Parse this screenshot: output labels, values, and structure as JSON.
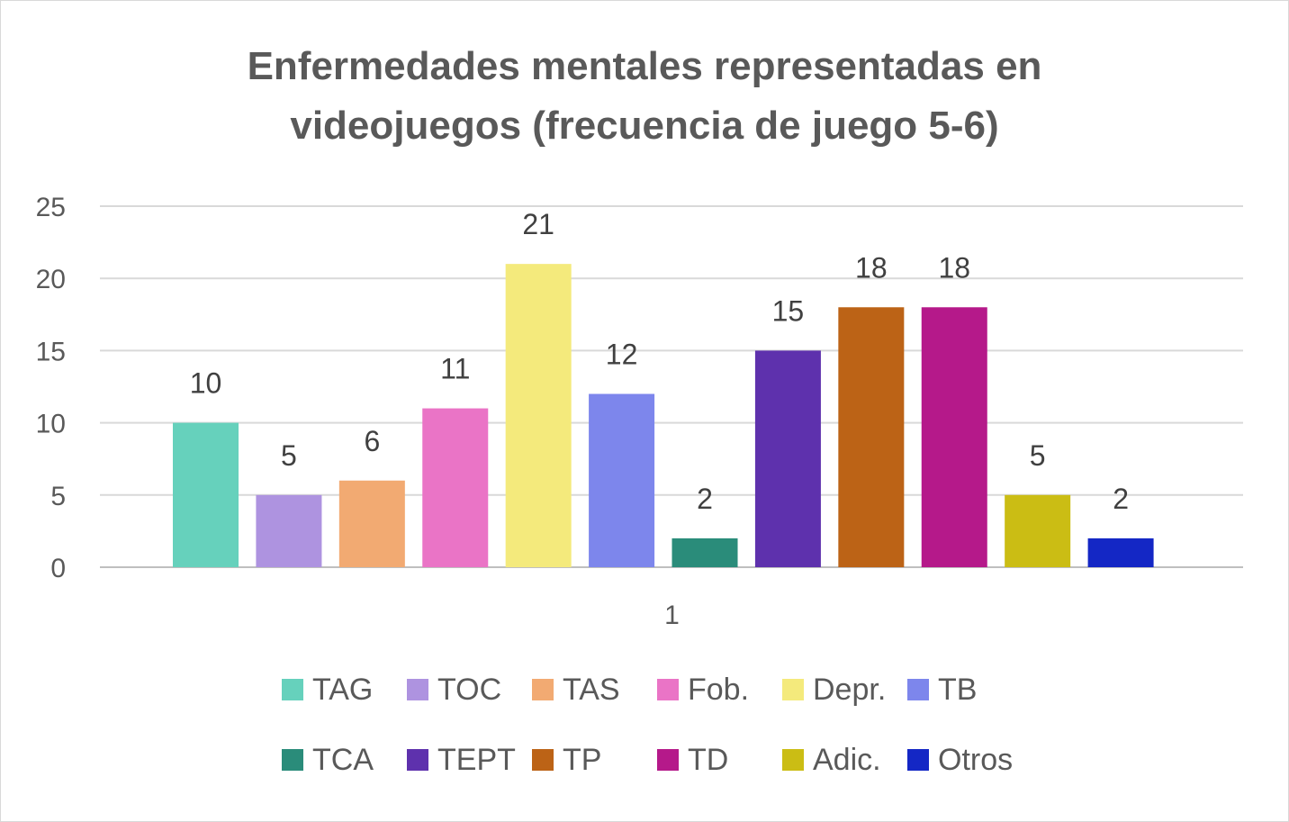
{
  "chart_data": {
    "type": "bar",
    "title": "Enfermedades mentales representadas en videojuegos (frecuencia de juego 5-6)",
    "categories": [
      "1"
    ],
    "series": [
      {
        "name": "TAG",
        "values": [
          10
        ],
        "color": "#66d1bc"
      },
      {
        "name": "TOC",
        "values": [
          5
        ],
        "color": "#ae93e0"
      },
      {
        "name": "TAS",
        "values": [
          6
        ],
        "color": "#f2aa72"
      },
      {
        "name": "Fob.",
        "values": [
          11
        ],
        "color": "#ea74c6"
      },
      {
        "name": "Depr.",
        "values": [
          21
        ],
        "color": "#f4ea7c"
      },
      {
        "name": "TB",
        "values": [
          12
        ],
        "color": "#7d86ec"
      },
      {
        "name": "TCA",
        "values": [
          2
        ],
        "color": "#2a8c7a"
      },
      {
        "name": "TEPT",
        "values": [
          15
        ],
        "color": "#5e31ad"
      },
      {
        "name": "TP",
        "values": [
          18
        ],
        "color": "#bc6316"
      },
      {
        "name": "TD",
        "values": [
          18
        ],
        "color": "#b5198a"
      },
      {
        "name": "Adic.",
        "values": [
          5
        ],
        "color": "#cbbd14"
      },
      {
        "name": "Otros",
        "values": [
          2
        ],
        "color": "#1427c5"
      }
    ],
    "ylim": [
      0,
      25
    ],
    "yticks": [
      0,
      5,
      10,
      15,
      20,
      25
    ],
    "grid": true,
    "data_labels": true,
    "legend_position": "bottom",
    "xlabel": "",
    "ylabel": ""
  }
}
